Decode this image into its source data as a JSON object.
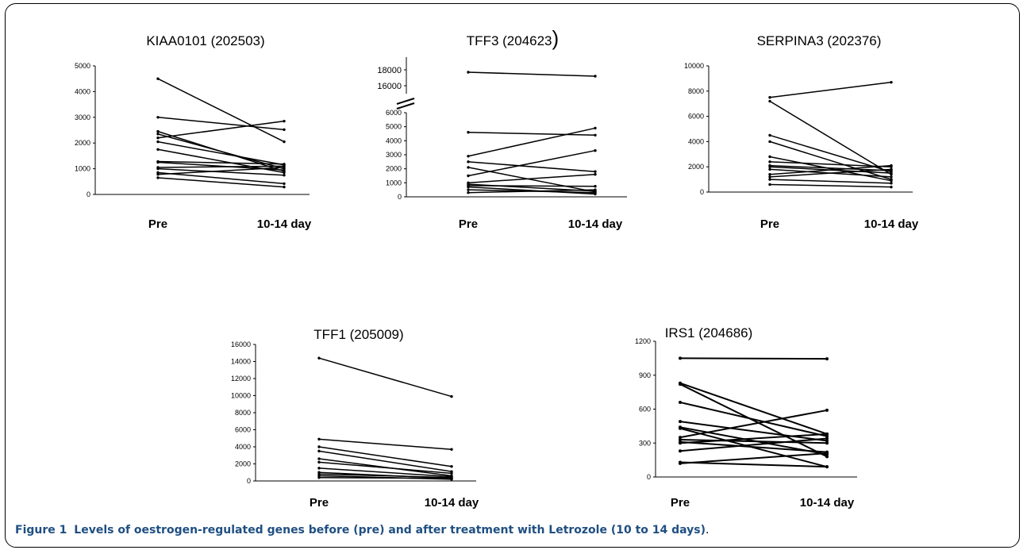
{
  "figure": {
    "caption_label": "Figure 1",
    "caption_text": "Levels of oestrogen-regulated genes before (pre) and after treatment with Letrozole (10 to 14 days)",
    "caption_end": "."
  },
  "chart_data": [
    {
      "type": "line",
      "title": "KIAA0101 (202503)",
      "categories": [
        "Pre",
        "10-14 day"
      ],
      "ylim": [
        0,
        5000
      ],
      "yticks": [
        0,
        1000,
        2000,
        3000,
        4000,
        5000
      ],
      "series": [
        {
          "values": [
            4500,
            2050
          ]
        },
        {
          "values": [
            3000,
            2520
          ]
        },
        {
          "values": [
            2450,
            900
          ]
        },
        {
          "values": [
            2350,
            1000
          ]
        },
        {
          "values": [
            2200,
            2850
          ]
        },
        {
          "values": [
            2050,
            1150
          ]
        },
        {
          "values": [
            1750,
            850
          ]
        },
        {
          "values": [
            1280,
            1180
          ]
        },
        {
          "values": [
            1250,
            950
          ]
        },
        {
          "values": [
            1050,
            1100
          ]
        },
        {
          "values": [
            1000,
            750
          ]
        },
        {
          "values": [
            850,
            420
          ]
        },
        {
          "values": [
            780,
            1050
          ]
        },
        {
          "values": [
            650,
            290
          ]
        }
      ]
    },
    {
      "type": "line",
      "title": "TFF3 (204623",
      "title_paren": ")",
      "categories": [
        "Pre",
        "10-14 day"
      ],
      "ylim": [
        0,
        6000
      ],
      "yticks": [
        0,
        1000,
        2000,
        3000,
        4000,
        5000,
        6000
      ],
      "upper_yticks": [
        16000,
        18000
      ],
      "axis_break": true,
      "series": [
        {
          "values": [
            17700,
            17200
          ]
        },
        {
          "values": [
            4600,
            4400
          ]
        },
        {
          "values": [
            2900,
            4900
          ]
        },
        {
          "values": [
            2500,
            1800
          ]
        },
        {
          "values": [
            2100,
            350
          ]
        },
        {
          "values": [
            1500,
            3300
          ]
        },
        {
          "values": [
            1000,
            1600
          ]
        },
        {
          "values": [
            900,
            400
          ]
        },
        {
          "values": [
            800,
            750
          ]
        },
        {
          "values": [
            700,
            200
          ]
        },
        {
          "values": [
            500,
            300
          ]
        },
        {
          "values": [
            300,
            500
          ]
        }
      ]
    },
    {
      "type": "line",
      "title": "SERPINA3 (202376)",
      "categories": [
        "Pre",
        "10-14 day"
      ],
      "ylim": [
        0,
        10000
      ],
      "yticks": [
        0,
        2000,
        4000,
        6000,
        8000,
        10000
      ],
      "series": [
        {
          "values": [
            7500,
            8700
          ]
        },
        {
          "values": [
            7200,
            1400
          ]
        },
        {
          "values": [
            4500,
            1600
          ]
        },
        {
          "values": [
            4000,
            1000
          ]
        },
        {
          "values": [
            2800,
            900
          ]
        },
        {
          "values": [
            2400,
            2000
          ]
        },
        {
          "values": [
            2100,
            1700
          ]
        },
        {
          "values": [
            2000,
            1500
          ]
        },
        {
          "values": [
            1800,
            1200
          ]
        },
        {
          "values": [
            1400,
            2100
          ]
        },
        {
          "values": [
            1200,
            1800
          ]
        },
        {
          "values": [
            1000,
            700
          ]
        },
        {
          "values": [
            600,
            400
          ]
        }
      ]
    },
    {
      "type": "line",
      "title": "TFF1 (205009)",
      "categories": [
        "Pre",
        "10-14 day"
      ],
      "ylim": [
        0,
        16000
      ],
      "yticks": [
        0,
        2000,
        4000,
        6000,
        8000,
        10000,
        12000,
        14000,
        16000
      ],
      "series": [
        {
          "values": [
            14400,
            9900
          ]
        },
        {
          "values": [
            4900,
            3700
          ]
        },
        {
          "values": [
            4000,
            1700
          ]
        },
        {
          "values": [
            3500,
            1100
          ]
        },
        {
          "values": [
            2600,
            600
          ]
        },
        {
          "values": [
            2200,
            900
          ]
        },
        {
          "values": [
            1500,
            500
          ]
        },
        {
          "values": [
            1000,
            300
          ]
        },
        {
          "values": [
            800,
            400
          ]
        },
        {
          "values": [
            600,
            200
          ]
        },
        {
          "values": [
            400,
            300
          ]
        }
      ]
    },
    {
      "type": "line",
      "title": "IRS1 (204686)",
      "categories": [
        "Pre",
        "10-14 day"
      ],
      "ylim": [
        0,
        1200
      ],
      "yticks": [
        0,
        300,
        600,
        900,
        1200
      ],
      "series": [
        {
          "values": [
            1050,
            1045
          ]
        },
        {
          "values": [
            830,
            380
          ]
        },
        {
          "values": [
            820,
            180
          ]
        },
        {
          "values": [
            660,
            360
          ]
        },
        {
          "values": [
            490,
            320
          ]
        },
        {
          "values": [
            440,
            200
          ]
        },
        {
          "values": [
            430,
            90
          ]
        },
        {
          "values": [
            350,
            590
          ]
        },
        {
          "values": [
            330,
            300
          ]
        },
        {
          "values": [
            310,
            220
          ]
        },
        {
          "values": [
            300,
            380
          ]
        },
        {
          "values": [
            230,
            340
          ]
        },
        {
          "values": [
            130,
            90
          ]
        },
        {
          "values": [
            120,
            210
          ]
        }
      ]
    }
  ]
}
